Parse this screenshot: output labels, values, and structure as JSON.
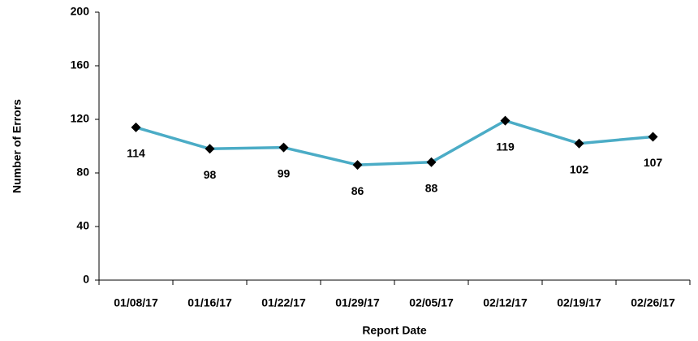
{
  "chart_data": {
    "type": "line",
    "x_label": "Report Date",
    "y_label": "Number of Errors",
    "categories": [
      "01/08/17",
      "01/16/17",
      "01/22/17",
      "01/29/17",
      "02/05/17",
      "02/12/17",
      "02/19/17",
      "02/26/17"
    ],
    "series": [
      {
        "name": "Number of Errors",
        "color": "#4bacc6",
        "values": [
          114,
          98,
          99,
          86,
          88,
          119,
          102,
          107
        ]
      }
    ],
    "ylim": [
      0,
      200
    ],
    "yticks": [
      0,
      40,
      80,
      120,
      160,
      200
    ],
    "grid": false,
    "legend": false
  }
}
